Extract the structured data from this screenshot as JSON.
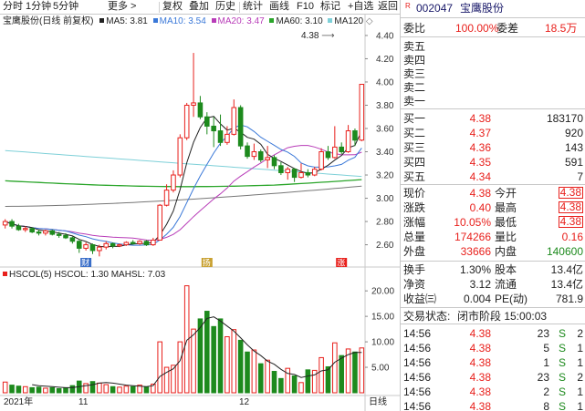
{
  "toolbar": {
    "periods": [
      "分时",
      "1分钟",
      "5分钟",
      "更多 >"
    ],
    "tools": [
      "复权",
      "叠加",
      "历史",
      "统计",
      "画线",
      "F10",
      "标记",
      "+自选",
      "返回"
    ]
  },
  "price_legend": {
    "title": "宝鹰股份(日线 前复权)",
    "ma5": "MA5: 3.81",
    "ma10": "MA10: 3.54",
    "ma20": "MA20: 3.47",
    "ma60": "MA60: 3.10",
    "ma120": "MA120",
    "high_label": "4.38"
  },
  "vol_legend": {
    "title": "HSCOL(5) HSCOL: 1.30 MAHSL: 7.03"
  },
  "markers": {
    "m1": "财",
    "m2": "扬",
    "m3": "涨"
  },
  "date_axis": {
    "d1": "2021年",
    "d2": "11",
    "d3": "12",
    "switch": "日线"
  },
  "colors": {
    "up": "#e8201c",
    "down": "#1d8a1d",
    "ma5": "#222222",
    "ma10": "#3a78d8",
    "ma20": "#b83cb8",
    "ma60": "#2aa52a",
    "ma120": "#7ed0d8",
    "ma250": "#777777"
  },
  "chart_data": {
    "type": "candlestick",
    "y_ticks": [
      "4.40",
      "4.20",
      "4.00",
      "3.80",
      "3.60",
      "3.40",
      "3.20",
      "3.00",
      "2.80",
      "2.60"
    ],
    "ylim": [
      2.44,
      4.47
    ],
    "vol_ticks": [
      "20.00",
      "15.00",
      "10.00",
      "5.00"
    ],
    "vol_ylim": [
      0,
      22
    ],
    "candles": [
      [
        2.77,
        2.8,
        2.82,
        2.74
      ],
      [
        2.8,
        2.76,
        2.82,
        2.74
      ],
      [
        2.76,
        2.73,
        2.78,
        2.72
      ],
      [
        2.73,
        2.74,
        2.76,
        2.71
      ],
      [
        2.74,
        2.71,
        2.75,
        2.7
      ],
      [
        2.71,
        2.7,
        2.73,
        2.68
      ],
      [
        2.7,
        2.72,
        2.73,
        2.68
      ],
      [
        2.72,
        2.69,
        2.73,
        2.68
      ],
      [
        2.69,
        2.68,
        2.71,
        2.66
      ],
      [
        2.68,
        2.66,
        2.7,
        2.65
      ],
      [
        2.66,
        2.63,
        2.67,
        2.61
      ],
      [
        2.63,
        2.57,
        2.64,
        2.53
      ],
      [
        2.57,
        2.6,
        2.62,
        2.55
      ],
      [
        2.6,
        2.55,
        2.61,
        2.52
      ],
      [
        2.55,
        2.58,
        2.6,
        2.5
      ],
      [
        2.58,
        2.61,
        2.63,
        2.56
      ],
      [
        2.61,
        2.59,
        2.62,
        2.57
      ],
      [
        2.59,
        2.6,
        2.61,
        2.58
      ],
      [
        2.6,
        2.62,
        2.63,
        2.59
      ],
      [
        2.62,
        2.61,
        2.64,
        2.6
      ],
      [
        2.61,
        2.63,
        2.64,
        2.6
      ],
      [
        2.63,
        2.6,
        2.64,
        2.59
      ],
      [
        2.6,
        2.64,
        2.66,
        2.59
      ],
      [
        2.64,
        2.94,
        2.95,
        2.64
      ],
      [
        2.94,
        3.07,
        3.12,
        2.93
      ],
      [
        3.07,
        3.2,
        3.24,
        3.05
      ],
      [
        3.2,
        3.52,
        3.55,
        3.18
      ],
      [
        3.52,
        3.8,
        3.82,
        3.5
      ],
      [
        3.8,
        3.82,
        4.25,
        3.7
      ],
      [
        3.82,
        3.7,
        3.88,
        3.68
      ],
      [
        3.7,
        3.62,
        3.74,
        3.55
      ],
      [
        3.62,
        3.58,
        3.7,
        3.44
      ],
      [
        3.58,
        3.48,
        3.72,
        3.45
      ],
      [
        3.48,
        3.55,
        3.62,
        3.46
      ],
      [
        3.55,
        3.78,
        3.85,
        3.54
      ],
      [
        3.78,
        3.45,
        3.8,
        3.42
      ],
      [
        3.45,
        3.36,
        3.48,
        3.34
      ],
      [
        3.36,
        3.4,
        3.47,
        3.33
      ],
      [
        3.4,
        3.33,
        3.42,
        3.31
      ],
      [
        3.33,
        3.35,
        3.45,
        3.26
      ],
      [
        3.35,
        3.28,
        3.37,
        3.25
      ],
      [
        3.28,
        3.22,
        3.31,
        3.2
      ],
      [
        3.22,
        3.25,
        3.27,
        3.16
      ],
      [
        3.25,
        3.18,
        3.26,
        3.14
      ],
      [
        3.18,
        3.22,
        3.3,
        3.17
      ],
      [
        3.22,
        3.2,
        3.25,
        3.18
      ],
      [
        3.2,
        3.25,
        3.27,
        3.19
      ],
      [
        3.25,
        3.4,
        3.43,
        3.24
      ],
      [
        3.4,
        3.35,
        3.45,
        3.33
      ],
      [
        3.35,
        3.44,
        3.62,
        3.34
      ],
      [
        3.44,
        3.4,
        3.48,
        3.38
      ],
      [
        3.4,
        3.58,
        3.63,
        3.39
      ],
      [
        3.58,
        3.5,
        3.6,
        3.45
      ],
      [
        3.5,
        3.98,
        3.98,
        3.49
      ]
    ],
    "vol_values": [
      2.1,
      1.5,
      1.3,
      1.2,
      1.0,
      1.1,
      0.9,
      1.0,
      0.8,
      0.9,
      1.4,
      2.3,
      1.8,
      2.2,
      1.9,
      1.6,
      1.2,
      1.1,
      1.3,
      1.2,
      1.5,
      1.1,
      1.7,
      10.0,
      5.0,
      5.4,
      10.0,
      21.0,
      12.5,
      14.5,
      16.0,
      13.0,
      14.5,
      11.0,
      12.4,
      10.3,
      8.0,
      8.4,
      5.7,
      6.4,
      4.2,
      2.8,
      4.8,
      3.3,
      2.0,
      4.5,
      4.4,
      6.9,
      5.1,
      9.8,
      7.3,
      8.6,
      8.0,
      8.8
    ],
    "mahsl": [
      null,
      null,
      null,
      null,
      1.6,
      1.4,
      1.3,
      1.2,
      1.1,
      1.0,
      1.0,
      1.2,
      1.4,
      1.6,
      1.9,
      2.0,
      1.9,
      1.7,
      1.5,
      1.4,
      1.3,
      1.2,
      1.4,
      3.2,
      4.0,
      4.7,
      6.3,
      10.3,
      11.4,
      12.8,
      14.6,
      14.9,
      14.1,
      13.1,
      12.1,
      10.8,
      9.4,
      8.2,
      7.3,
      6.2,
      5.6,
      4.6,
      3.8,
      3.6,
      3.0,
      3.3,
      3.5,
      4.3,
      4.5,
      6.0,
      6.8,
      7.5,
      7.9,
      7.9
    ]
  },
  "quote": {
    "code": "002047",
    "name": "宝鹰股份",
    "wei_bi_label": "委比",
    "wei_bi": "100.00%",
    "wei_cha_label": "委差",
    "wei_cha": "18.5万",
    "sell_labels": [
      "卖五",
      "卖四",
      "卖三",
      "卖二",
      "卖一"
    ],
    "buy": [
      {
        "label": "买一",
        "price": "4.38",
        "vol": "183170"
      },
      {
        "label": "买二",
        "price": "4.37",
        "vol": "920"
      },
      {
        "label": "买三",
        "price": "4.36",
        "vol": "143"
      },
      {
        "label": "买四",
        "price": "4.35",
        "vol": "591"
      },
      {
        "label": "买五",
        "price": "4.34",
        "vol": "7"
      }
    ],
    "stats": [
      {
        "l1": "现价",
        "v1": "4.38",
        "l2": "今开",
        "v2": "4.38"
      },
      {
        "l1": "涨跌",
        "v1": "0.40",
        "l2": "最高",
        "v2": "4.38"
      },
      {
        "l1": "涨幅",
        "v1": "10.05%",
        "l2": "最低",
        "v2": "4.38"
      },
      {
        "l1": "总量",
        "v1": "174266",
        "l2": "量比",
        "v2": "0.16"
      },
      {
        "l1": "外盘",
        "v1": "33666",
        "l2": "内盘",
        "v2": "140600"
      }
    ],
    "fund": [
      {
        "l1": "换手",
        "v1": "1.30%",
        "l2": "股本",
        "v2": "13.4亿"
      },
      {
        "l1": "净资",
        "v1": "3.12",
        "l2": "流通",
        "v2": "13.4亿"
      },
      {
        "l1": "收益㈢",
        "v1": "0.004",
        "l2": "PE(动)",
        "v2": "781.9"
      }
    ],
    "trade_status_label": "交易状态:",
    "trade_status": "闭市阶段 15:00:03",
    "ticks": [
      {
        "time": "14:56",
        "price": "4.38",
        "vol": "23",
        "side": "S",
        "num": "2"
      },
      {
        "time": "14:56",
        "price": "4.38",
        "vol": "5",
        "side": "S",
        "num": "1"
      },
      {
        "time": "14:56",
        "price": "4.38",
        "vol": "1",
        "side": "S",
        "num": "1"
      },
      {
        "time": "14:56",
        "price": "4.38",
        "vol": "23",
        "side": "S",
        "num": "2"
      },
      {
        "time": "14:56",
        "price": "4.38",
        "vol": "2",
        "side": "S",
        "num": "1"
      },
      {
        "time": "14:56",
        "price": "4.38",
        "vol": "8",
        "side": "S",
        "num": "1"
      }
    ]
  }
}
